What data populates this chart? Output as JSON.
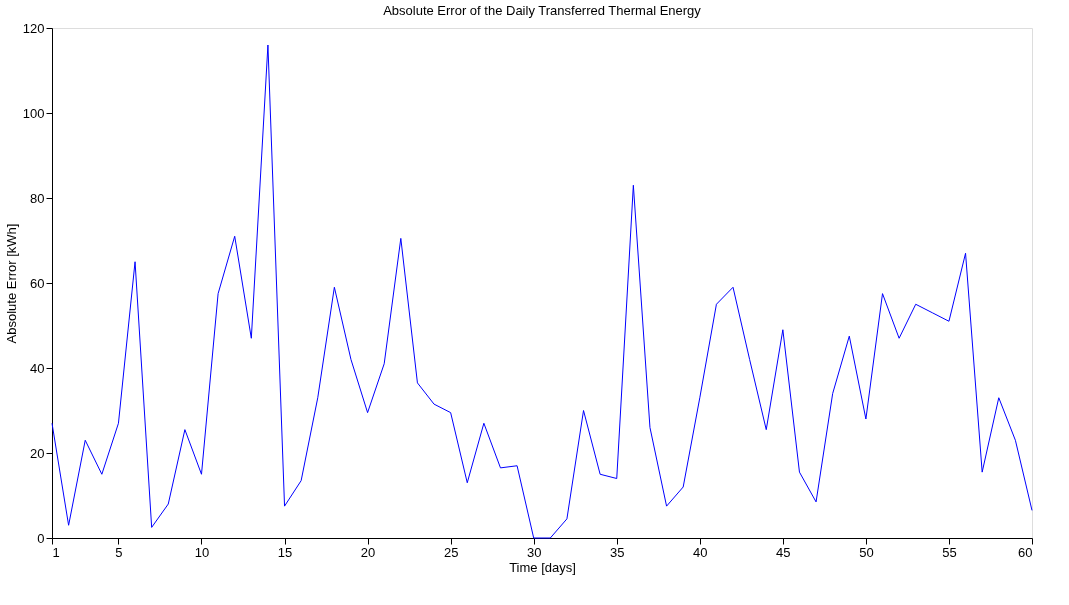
{
  "chart_data": {
    "type": "line",
    "title": "Absolute Error of the Daily Transferred Thermal Energy",
    "xlabel": "Time [days]",
    "ylabel": "Absolute Error [kWh]",
    "x": [
      1,
      2,
      3,
      4,
      5,
      6,
      7,
      8,
      9,
      10,
      11,
      12,
      13,
      14,
      15,
      16,
      17,
      18,
      19,
      20,
      21,
      22,
      23,
      24,
      25,
      26,
      27,
      28,
      29,
      30,
      31,
      32,
      33,
      34,
      35,
      36,
      37,
      38,
      39,
      40,
      41,
      42,
      43,
      44,
      45,
      46,
      47,
      48,
      49,
      50,
      51,
      52,
      53,
      54,
      55,
      56,
      57,
      58,
      59,
      60
    ],
    "series": [
      {
        "color": "#0000ff",
        "values": [
          27,
          3,
          23,
          15,
          27,
          65,
          2.5,
          8,
          25.5,
          15,
          57.5,
          71,
          47,
          116,
          7.5,
          13.5,
          33,
          59,
          42,
          29.5,
          41,
          70.5,
          36.5,
          31.5,
          29.5,
          13,
          27,
          16.5,
          17,
          0,
          0,
          4.5,
          30,
          15,
          14,
          83,
          26,
          7.5,
          12,
          33,
          55,
          59,
          42,
          25.5,
          49,
          15.5,
          8.5,
          34,
          47.5,
          28,
          57.5,
          47,
          55,
          53,
          51,
          67,
          15.5,
          33,
          23,
          6.5
        ]
      }
    ],
    "xlim": [
      1,
      60
    ],
    "xticks": [
      1,
      5,
      10,
      15,
      20,
      25,
      30,
      35,
      40,
      45,
      50,
      55,
      60
    ],
    "ylim": [
      0,
      120
    ],
    "yticks": [
      0,
      20,
      40,
      60,
      80,
      100,
      120
    ],
    "grid": false,
    "legend": false,
    "line_style": "solid",
    "marker": "none"
  }
}
